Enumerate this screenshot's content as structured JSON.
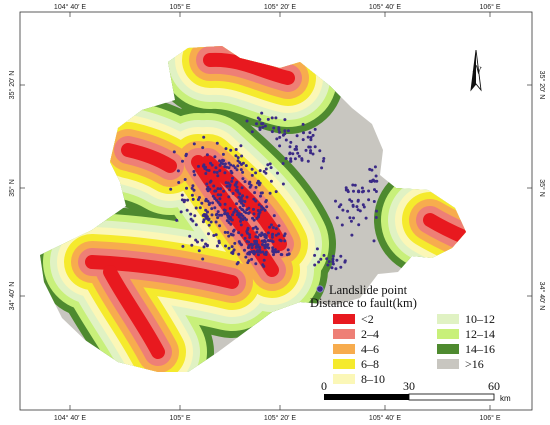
{
  "map": {
    "lon_ticks_top": [
      "104° 40′ E",
      "105° E",
      "105° 20′ E",
      "105° 40′ E",
      "106° E"
    ],
    "lon_ticks_bottom": [
      "104° 40′ E",
      "105° E",
      "105° 20′ E",
      "105° 40′ E",
      "106° E"
    ],
    "lat_ticks_left": [
      "35° 20′ N",
      "35° N",
      "34° 40′ N"
    ],
    "lat_ticks_right": [
      "35° 20′ N",
      "35° N",
      "34° 40′ N"
    ],
    "north_label": "N"
  },
  "legend": {
    "point_label": "Landslide point",
    "distance_title": "Distance to fault(km)",
    "classes": [
      {
        "label": "<2",
        "color": "#e8191f"
      },
      {
        "label": "2–4",
        "color": "#ee7f76"
      },
      {
        "label": "4–6",
        "color": "#f7ac4e"
      },
      {
        "label": "6–8",
        "color": "#f5ea2d"
      },
      {
        "label": "8–10",
        "color": "#fbf7b7"
      },
      {
        "label": "10–12",
        "color": "#e0f2c3"
      },
      {
        "label": "12–14",
        "color": "#c8f07a"
      },
      {
        "label": "14–16",
        "color": "#4e8a2f"
      },
      {
        "label": ">16",
        "color": "#c8c6c0"
      }
    ],
    "point_color": "#3b2a86"
  },
  "scale": {
    "labels": [
      "0",
      "30",
      "60"
    ],
    "unit": "km"
  }
}
